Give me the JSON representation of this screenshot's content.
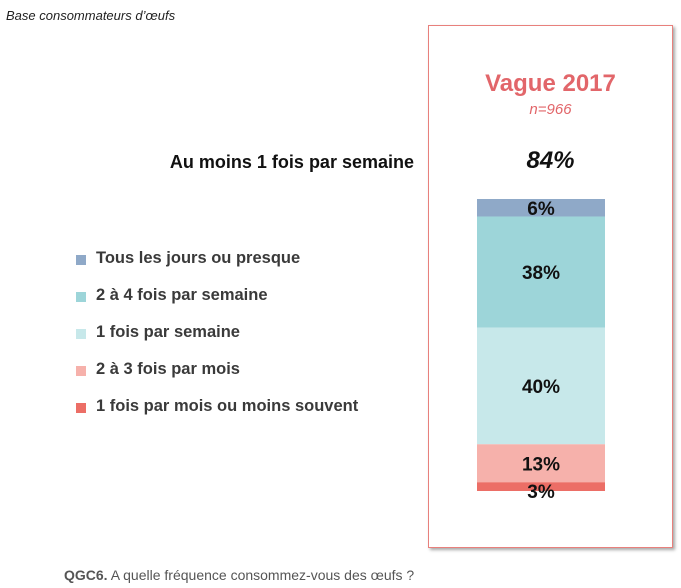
{
  "base_note": "Base consommateurs d’œufs",
  "wave": {
    "title": "Vague 2017",
    "n": "n=966"
  },
  "weekly": {
    "label": "Au moins 1 fois par semaine",
    "value": "84%"
  },
  "question": {
    "code": "QGC6.",
    "text": " A quelle fréquence consommez-vous des œufs ?"
  },
  "chart_data": {
    "type": "bar",
    "stacked": true,
    "orientation": "vertical",
    "categories": [
      "Vague 2017"
    ],
    "series": [
      {
        "name": "Tous les jours ou presque",
        "values": [
          6
        ],
        "label": "6%",
        "color": "#8fa9c8"
      },
      {
        "name": "2 à 4 fois par semaine",
        "values": [
          38
        ],
        "label": "38%",
        "color": "#9dd5d9"
      },
      {
        "name": "1 fois par semaine",
        "values": [
          40
        ],
        "label": "40%",
        "color": "#c7e8ea"
      },
      {
        "name": "2 à 3 fois par mois",
        "values": [
          13
        ],
        "label": "13%",
        "color": "#f6b1ab"
      },
      {
        "name": "1 fois par mois ou moins souvent",
        "values": [
          3
        ],
        "label": "3%",
        "color": "#ec6e66"
      }
    ],
    "legend": "left",
    "grid": false,
    "ylim": [
      0,
      100
    ]
  }
}
